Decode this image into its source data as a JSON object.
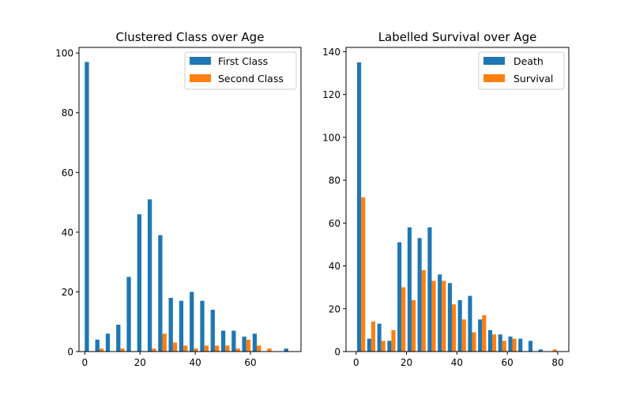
{
  "colors": {
    "series1": "#1f77b4",
    "series2": "#ff7f0e"
  },
  "chart_data": [
    {
      "type": "bar",
      "title": "Clustered Class over Age",
      "xlabel": "",
      "ylabel": "",
      "xlim": [
        -2.1,
        78.3
      ],
      "ylim": [
        0,
        101.9
      ],
      "xticks": [
        0,
        20,
        40,
        60
      ],
      "yticks": [
        0,
        20,
        40,
        60,
        80,
        100
      ],
      "grid": false,
      "legend_position": "top-right",
      "categories": [
        1.5,
        5.3,
        9.1,
        12.9,
        16.7,
        20.5,
        24.3,
        28.1,
        31.9,
        35.7,
        39.5,
        43.3,
        47.1,
        50.9,
        54.7,
        58.5,
        62.3,
        66.1,
        69.9,
        73.7
      ],
      "series": [
        {
          "name": "First Class",
          "values": [
            97,
            4,
            6,
            9,
            25,
            46,
            51,
            39,
            18,
            17,
            20,
            17,
            14,
            7,
            7,
            5,
            6,
            0,
            0,
            1
          ]
        },
        {
          "name": "Second Class",
          "values": [
            0,
            1,
            0,
            1,
            0,
            0,
            1,
            6,
            3,
            2,
            1,
            2,
            2,
            2,
            1,
            4,
            2,
            1,
            0,
            0
          ]
        }
      ]
    },
    {
      "type": "bar",
      "title": "Labelled Survival over Age",
      "xlabel": "",
      "ylabel": "",
      "xlim": [
        -4.0,
        84.4
      ],
      "ylim": [
        0,
        142
      ],
      "xticks": [
        0,
        20,
        40,
        60,
        80
      ],
      "yticks": [
        0,
        20,
        40,
        60,
        80,
        100,
        120,
        140
      ],
      "grid": false,
      "legend_position": "top-right",
      "categories": [
        2,
        6,
        10,
        14,
        18,
        22,
        26,
        30,
        34,
        38,
        42,
        46,
        50,
        54,
        58,
        62,
        66,
        70,
        74,
        78
      ],
      "series": [
        {
          "name": "Death",
          "values": [
            135,
            6,
            13,
            5,
            51,
            58,
            53,
            58,
            36,
            32,
            24,
            26,
            15,
            10,
            8,
            7,
            6,
            5,
            1,
            0
          ]
        },
        {
          "name": "Survival",
          "values": [
            72,
            14,
            5,
            10,
            30,
            24,
            38,
            33,
            33,
            22,
            15,
            9,
            17,
            8,
            5,
            6,
            0,
            0,
            0,
            1
          ]
        }
      ]
    }
  ]
}
